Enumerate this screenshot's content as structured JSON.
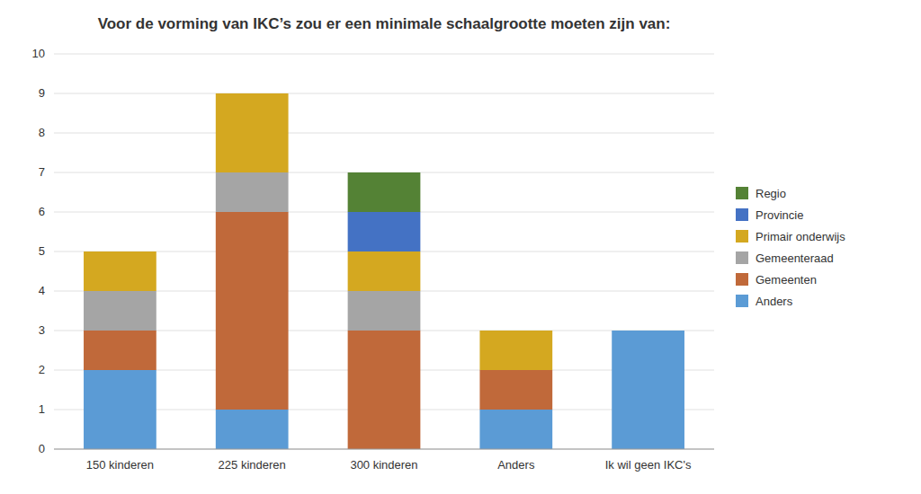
{
  "chart_data": {
    "type": "bar",
    "stacked": true,
    "title": "Voor de vorming van IKC’s zou er een minimale schaalgrootte moeten zijn van:",
    "categories": [
      "150 kinderen",
      "225 kinderen",
      "300 kinderen",
      "Anders",
      "Ik wil geen IKC's"
    ],
    "series": [
      {
        "name": "Anders",
        "color": "#5B9BD5",
        "values": [
          2,
          1,
          0,
          1,
          3
        ]
      },
      {
        "name": "Gemeenten",
        "color": "#C0693A",
        "values": [
          1,
          5,
          3,
          1,
          0
        ]
      },
      {
        "name": "Gemeenteraad",
        "color": "#A5A5A5",
        "values": [
          1,
          1,
          1,
          0,
          0
        ]
      },
      {
        "name": "Primair onderwijs",
        "color": "#D4A820",
        "values": [
          1,
          2,
          1,
          1,
          0
        ]
      },
      {
        "name": "Provincie",
        "color": "#4472C4",
        "values": [
          0,
          0,
          1,
          0,
          0
        ]
      },
      {
        "name": "Regio",
        "color": "#548235",
        "values": [
          0,
          0,
          1,
          0,
          0
        ]
      }
    ],
    "ylim": [
      0,
      10
    ],
    "yticks": [
      0,
      1,
      2,
      3,
      4,
      5,
      6,
      7,
      8,
      9,
      10
    ],
    "grid": true,
    "legend": "right"
  }
}
